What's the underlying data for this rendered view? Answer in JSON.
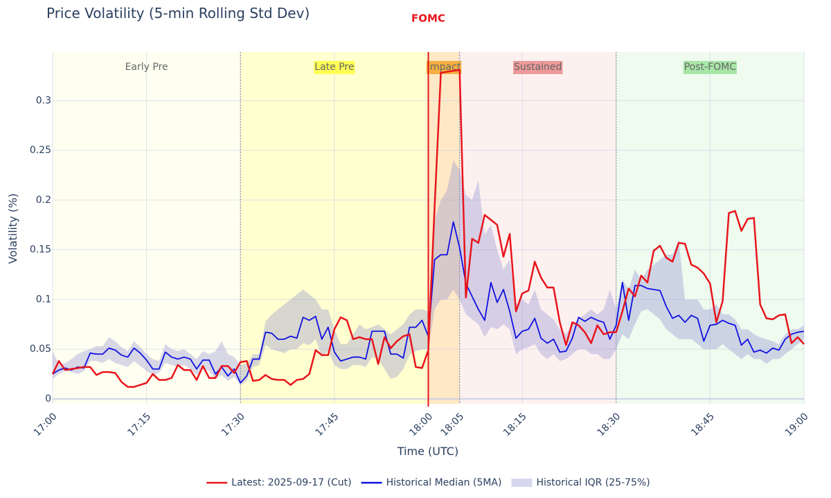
{
  "chart_data": {
    "type": "line",
    "title": "Price Volatility (5-min Rolling Std Dev)",
    "xlabel": "Time (UTC)",
    "ylabel": "Volatility (%)",
    "xlim": [
      "17:00",
      "19:00"
    ],
    "xticks": [
      "17:00",
      "17:15",
      "17:30",
      "17:45",
      "18:00",
      "18:05",
      "18:15",
      "18:30",
      "18:45",
      "19:00"
    ],
    "ylim": [
      -0.005,
      0.349
    ],
    "yticks": [
      0,
      0.05,
      0.1,
      0.15,
      0.2,
      0.25,
      0.3
    ],
    "grid": true,
    "legend": "bottom",
    "x": [
      "17:00",
      "17:01",
      "17:02",
      "17:03",
      "17:04",
      "17:05",
      "17:06",
      "17:07",
      "17:08",
      "17:09",
      "17:10",
      "17:11",
      "17:12",
      "17:13",
      "17:14",
      "17:15",
      "17:16",
      "17:17",
      "17:18",
      "17:19",
      "17:20",
      "17:21",
      "17:22",
      "17:23",
      "17:24",
      "17:25",
      "17:26",
      "17:27",
      "17:28",
      "17:29",
      "17:30",
      "17:31",
      "17:32",
      "17:33",
      "17:34",
      "17:35",
      "17:36",
      "17:37",
      "17:38",
      "17:39",
      "17:40",
      "17:41",
      "17:42",
      "17:43",
      "17:44",
      "17:45",
      "17:46",
      "17:47",
      "17:48",
      "17:49",
      "17:50",
      "17:51",
      "17:52",
      "17:53",
      "17:54",
      "17:55",
      "17:56",
      "17:57",
      "17:58",
      "17:59",
      "18:00",
      "18:01",
      "18:02",
      "18:03",
      "18:04",
      "18:05",
      "18:06",
      "18:07",
      "18:08",
      "18:09",
      "18:10",
      "18:11",
      "18:12",
      "18:13",
      "18:14",
      "18:15",
      "18:16",
      "18:17",
      "18:18",
      "18:19",
      "18:20",
      "18:21",
      "18:22",
      "18:23",
      "18:24",
      "18:25",
      "18:26",
      "18:27",
      "18:28",
      "18:29",
      "18:30",
      "18:31",
      "18:32",
      "18:33",
      "18:34",
      "18:35",
      "18:36",
      "18:37",
      "18:38",
      "18:39",
      "18:40",
      "18:41",
      "18:42",
      "18:43",
      "18:44",
      "18:45",
      "18:46",
      "18:47",
      "18:48",
      "18:49",
      "18:50",
      "18:51",
      "18:52",
      "18:53",
      "18:54",
      "18:55",
      "18:56",
      "18:57",
      "18:58",
      "18:59",
      "19:00"
    ],
    "regions": [
      {
        "label": "Early Pre",
        "start": "17:00",
        "end": "17:30",
        "fill": "rgba(255,255,200,0.25)"
      },
      {
        "label": "Late Pre",
        "start": "17:30",
        "end": "18:00",
        "fill": "rgba(255,255,120,0.35)",
        "label_bg": "#ffff55"
      },
      {
        "label": "Impact",
        "start": "18:00",
        "end": "18:05",
        "fill": "rgba(255,190,90,0.35)",
        "label_bg": "#f5b041"
      },
      {
        "label": "Sustained",
        "start": "18:05",
        "end": "18:30",
        "fill": "rgba(245,180,170,0.18)",
        "label_bg": "#ee9a9a"
      },
      {
        "label": "Post-FOMC",
        "start": "18:30",
        "end": "19:00",
        "fill": "rgba(190,240,190,0.25)",
        "label_bg": "#a8e6a8"
      }
    ],
    "event": {
      "label": "FOMC",
      "x": "18:00",
      "color": "#e8141b"
    },
    "bands": [
      {
        "name": "Historical IQR (25-75%)",
        "color": "rgba(140,140,210,0.35)",
        "lower": [
          0.02,
          0.025,
          0.028,
          0.027,
          0.025,
          0.028,
          0.038,
          0.038,
          0.036,
          0.04,
          0.036,
          0.034,
          0.032,
          0.038,
          0.033,
          0.028,
          0.024,
          0.026,
          0.036,
          0.034,
          0.032,
          0.034,
          0.03,
          0.024,
          0.03,
          0.028,
          0.02,
          0.024,
          0.018,
          0.022,
          0.014,
          0.018,
          0.032,
          0.034,
          0.054,
          0.05,
          0.048,
          0.046,
          0.05,
          0.05,
          0.056,
          0.054,
          0.06,
          0.042,
          0.048,
          0.034,
          0.03,
          0.03,
          0.034,
          0.034,
          0.032,
          0.042,
          0.04,
          0.03,
          0.02,
          0.022,
          0.03,
          0.044,
          0.048,
          0.05,
          0.05,
          0.09,
          0.1,
          0.1,
          0.11,
          0.1,
          0.085,
          0.08,
          0.075,
          0.062,
          0.072,
          0.07,
          0.075,
          0.07,
          0.045,
          0.05,
          0.052,
          0.055,
          0.045,
          0.04,
          0.045,
          0.038,
          0.04,
          0.045,
          0.05,
          0.05,
          0.045,
          0.045,
          0.04,
          0.04,
          0.05,
          0.065,
          0.06,
          0.075,
          0.088,
          0.09,
          0.085,
          0.08,
          0.07,
          0.065,
          0.06,
          0.06,
          0.06,
          0.055,
          0.05,
          0.05,
          0.05,
          0.055,
          0.05,
          0.045,
          0.04,
          0.045,
          0.04,
          0.04,
          0.035,
          0.04,
          0.04,
          0.045,
          0.05,
          0.055,
          0.06
        ],
        "upper": [
          0.048,
          0.035,
          0.036,
          0.04,
          0.045,
          0.048,
          0.05,
          0.053,
          0.053,
          0.062,
          0.058,
          0.052,
          0.048,
          0.058,
          0.052,
          0.045,
          0.04,
          0.038,
          0.055,
          0.05,
          0.048,
          0.05,
          0.045,
          0.04,
          0.048,
          0.045,
          0.048,
          0.058,
          0.045,
          0.042,
          0.034,
          0.035,
          0.045,
          0.045,
          0.078,
          0.085,
          0.09,
          0.095,
          0.1,
          0.105,
          0.11,
          0.105,
          0.1,
          0.09,
          0.09,
          0.07,
          0.055,
          0.055,
          0.065,
          0.075,
          0.07,
          0.072,
          0.075,
          0.07,
          0.065,
          0.07,
          0.075,
          0.085,
          0.09,
          0.09,
          0.088,
          0.18,
          0.2,
          0.21,
          0.24,
          0.23,
          0.205,
          0.2,
          0.22,
          0.165,
          0.175,
          0.15,
          0.13,
          0.14,
          0.095,
          0.1,
          0.095,
          0.11,
          0.09,
          0.085,
          0.08,
          0.07,
          0.065,
          0.075,
          0.08,
          0.085,
          0.09,
          0.085,
          0.09,
          0.11,
          0.09,
          0.12,
          0.11,
          0.13,
          0.12,
          0.13,
          0.135,
          0.14,
          0.145,
          0.145,
          0.16,
          0.1,
          0.1,
          0.1,
          0.09,
          0.09,
          0.095,
          0.085,
          0.085,
          0.08,
          0.07,
          0.07,
          0.065,
          0.062,
          0.06,
          0.058,
          0.055,
          0.065,
          0.07,
          0.07,
          0.074
        ]
      }
    ],
    "series": [
      {
        "name": "Latest: 2025-09-17 (Cut)",
        "color": "#e8141b",
        "values": [
          0.025,
          0.038,
          0.029,
          0.03,
          0.031,
          0.032,
          0.032,
          0.024,
          0.027,
          0.027,
          0.026,
          0.017,
          0.012,
          0.012,
          0.014,
          0.016,
          0.025,
          0.019,
          0.019,
          0.021,
          0.034,
          0.029,
          0.029,
          0.019,
          0.033,
          0.021,
          0.021,
          0.033,
          0.033,
          0.026,
          0.037,
          0.038,
          0.018,
          0.019,
          0.024,
          0.02,
          0.019,
          0.019,
          0.014,
          0.019,
          0.02,
          0.025,
          0.049,
          0.044,
          0.044,
          0.07,
          0.082,
          0.079,
          0.06,
          0.062,
          0.06,
          0.06,
          0.035,
          0.062,
          0.051,
          0.058,
          0.063,
          0.065,
          0.032,
          0.031,
          0.049,
          0.192,
          0.328,
          0.329,
          0.33,
          0.331,
          0.102,
          0.161,
          0.157,
          0.185,
          0.18,
          0.175,
          0.143,
          0.166,
          0.088,
          0.106,
          0.109,
          0.138,
          0.122,
          0.112,
          0.112,
          0.077,
          0.054,
          0.077,
          0.074,
          0.067,
          0.056,
          0.074,
          0.065,
          0.067,
          0.067,
          0.088,
          0.111,
          0.103,
          0.124,
          0.117,
          0.149,
          0.154,
          0.142,
          0.138,
          0.157,
          0.156,
          0.135,
          0.132,
          0.126,
          0.116,
          0.077,
          0.098,
          0.187,
          0.189,
          0.169,
          0.181,
          0.182,
          0.095,
          0.081,
          0.08,
          0.084,
          0.085,
          0.056,
          0.062,
          0.055
        ]
      },
      {
        "name": "Historical Median (5MA)",
        "color": "#1010e0",
        "values": [
          0.025,
          0.029,
          0.031,
          0.029,
          0.032,
          0.031,
          0.046,
          0.045,
          0.045,
          0.051,
          0.049,
          0.044,
          0.042,
          0.051,
          0.046,
          0.039,
          0.03,
          0.03,
          0.047,
          0.042,
          0.04,
          0.042,
          0.04,
          0.03,
          0.039,
          0.039,
          0.025,
          0.032,
          0.023,
          0.03,
          0.016,
          0.023,
          0.04,
          0.04,
          0.067,
          0.066,
          0.06,
          0.06,
          0.063,
          0.061,
          0.082,
          0.079,
          0.083,
          0.06,
          0.072,
          0.047,
          0.038,
          0.04,
          0.042,
          0.042,
          0.04,
          0.068,
          0.068,
          0.068,
          0.045,
          0.045,
          0.041,
          0.072,
          0.072,
          0.079,
          0.063,
          0.14,
          0.145,
          0.145,
          0.178,
          0.152,
          0.116,
          0.103,
          0.09,
          0.079,
          0.117,
          0.097,
          0.11,
          0.088,
          0.061,
          0.068,
          0.07,
          0.081,
          0.061,
          0.056,
          0.06,
          0.047,
          0.048,
          0.061,
          0.082,
          0.078,
          0.082,
          0.079,
          0.077,
          0.06,
          0.074,
          0.117,
          0.079,
          0.114,
          0.114,
          0.111,
          0.11,
          0.109,
          0.093,
          0.081,
          0.084,
          0.077,
          0.084,
          0.081,
          0.058,
          0.074,
          0.075,
          0.079,
          0.076,
          0.074,
          0.054,
          0.06,
          0.047,
          0.049,
          0.046,
          0.051,
          0.049,
          0.06,
          0.065,
          0.067,
          0.068
        ]
      }
    ]
  }
}
